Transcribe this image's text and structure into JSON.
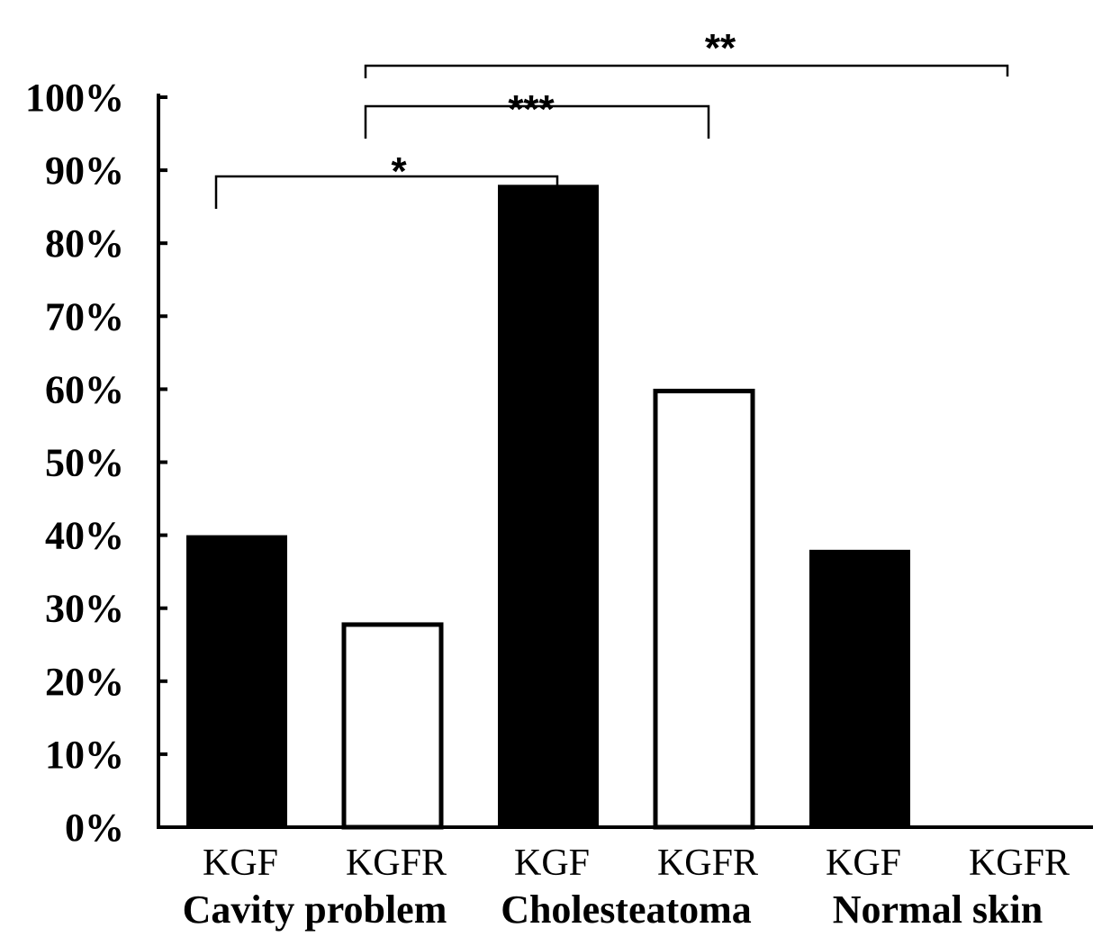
{
  "chart_data": {
    "type": "bar",
    "categories": [
      "KGF",
      "KGFR",
      "KGF",
      "KGFR",
      "KGF",
      "KGFR"
    ],
    "groups": [
      "Cavity problem",
      "Cholesteatoma",
      "Normal skin"
    ],
    "values": [
      40,
      28,
      88,
      60,
      38,
      0
    ],
    "fills": [
      "#000000",
      "#ffffff",
      "#000000",
      "#ffffff",
      "#000000",
      "#ffffff"
    ],
    "ylim": [
      0,
      100
    ],
    "yticks": [
      "0%",
      "10%",
      "20%",
      "30%",
      "40%",
      "50%",
      "60%",
      "70%",
      "80%",
      "90%",
      "100%"
    ],
    "significance": [
      {
        "label": "*",
        "from_bar": 0,
        "to_bar": 2
      },
      {
        "label": "***",
        "from_bar": 1,
        "to_bar": 3
      },
      {
        "label": "**",
        "from_bar": 1,
        "to_bar": 5
      }
    ],
    "grid": false,
    "legend": "none"
  }
}
